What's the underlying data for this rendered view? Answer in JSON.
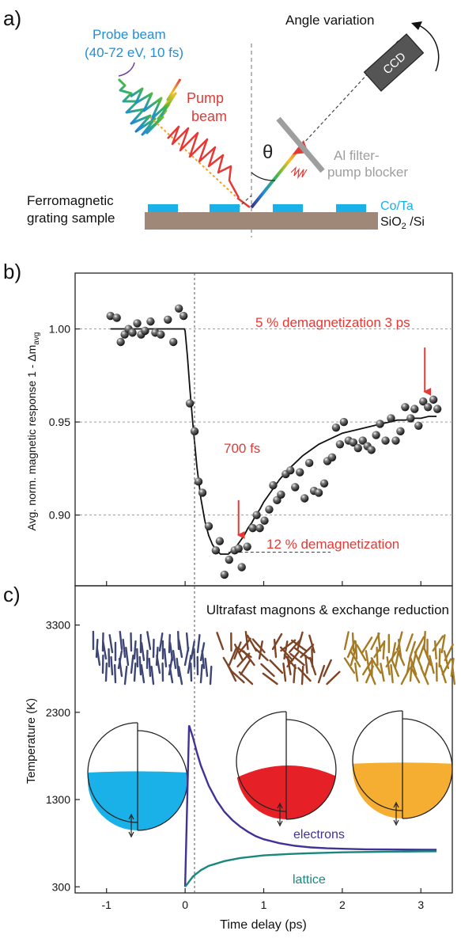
{
  "panel_a": {
    "label": "a)",
    "probe_line1": "Probe beam",
    "probe_line2": "(40-72 eV, 10 fs)",
    "pump_line1": "Pump",
    "pump_line2": "beam",
    "angle_variation": "Angle variation",
    "ccd": "CCD",
    "theta": "θ",
    "filter_line1": "Al filter-",
    "filter_line2": "pump blocker",
    "sample_line1": "Ferromagnetic",
    "sample_line2": "grating sample",
    "coTa": "Co/Ta",
    "substrate_main": "SiO",
    "substrate_sub": "2",
    "substrate_rest": " /Si",
    "colors": {
      "probe_text": "#1f8fd6",
      "pump": "#e53935",
      "grating": "#1ab0e8",
      "substrate": "#a08878",
      "filter": "#9e9e9e",
      "ccd": "#555555"
    }
  },
  "chart_data": [
    {
      "panel": "b)",
      "type": "scatter",
      "ylabel": "Avg. norm. magnetic response 1 - Δm",
      "ylabel_sub": "avg",
      "xlim": [
        -1.4,
        3.4
      ],
      "ylim": [
        0.862,
        1.03
      ],
      "yticks": [
        "0.90",
        "0.95",
        "1.00"
      ],
      "ytick_values": [
        0.9,
        0.95,
        1.0
      ],
      "grid": true,
      "points": [
        {
          "x": -0.95,
          "y": 1.007
        },
        {
          "x": -0.87,
          "y": 1.006
        },
        {
          "x": -0.82,
          "y": 0.993
        },
        {
          "x": -0.77,
          "y": 0.997
        },
        {
          "x": -0.72,
          "y": 1.0
        },
        {
          "x": -0.67,
          "y": 0.998
        },
        {
          "x": -0.61,
          "y": 1.003
        },
        {
          "x": -0.56,
          "y": 0.997
        },
        {
          "x": -0.51,
          "y": 0.999
        },
        {
          "x": -0.44,
          "y": 1.004
        },
        {
          "x": -0.38,
          "y": 0.998
        },
        {
          "x": -0.31,
          "y": 0.997
        },
        {
          "x": -0.22,
          "y": 1.005
        },
        {
          "x": -0.15,
          "y": 0.993
        },
        {
          "x": -0.08,
          "y": 1.011
        },
        {
          "x": -0.02,
          "y": 1.007
        },
        {
          "x": 0.06,
          "y": 0.96
        },
        {
          "x": 0.12,
          "y": 0.945
        },
        {
          "x": 0.17,
          "y": 0.918
        },
        {
          "x": 0.22,
          "y": 0.912
        },
        {
          "x": 0.3,
          "y": 0.894
        },
        {
          "x": 0.39,
          "y": 0.881
        },
        {
          "x": 0.44,
          "y": 0.886
        },
        {
          "x": 0.5,
          "y": 0.868
        },
        {
          "x": 0.56,
          "y": 0.876
        },
        {
          "x": 0.63,
          "y": 0.881
        },
        {
          "x": 0.68,
          "y": 0.882
        },
        {
          "x": 0.72,
          "y": 0.872
        },
        {
          "x": 0.79,
          "y": 0.883
        },
        {
          "x": 0.86,
          "y": 0.893
        },
        {
          "x": 0.91,
          "y": 0.9
        },
        {
          "x": 0.95,
          "y": 0.893
        },
        {
          "x": 1.01,
          "y": 0.897
        },
        {
          "x": 1.07,
          "y": 0.903
        },
        {
          "x": 1.12,
          "y": 0.916
        },
        {
          "x": 1.17,
          "y": 0.908
        },
        {
          "x": 1.22,
          "y": 0.911
        },
        {
          "x": 1.28,
          "y": 0.922
        },
        {
          "x": 1.34,
          "y": 0.924
        },
        {
          "x": 1.4,
          "y": 0.915
        },
        {
          "x": 1.46,
          "y": 0.923
        },
        {
          "x": 1.52,
          "y": 0.909
        },
        {
          "x": 1.58,
          "y": 0.928
        },
        {
          "x": 1.64,
          "y": 0.913
        },
        {
          "x": 1.7,
          "y": 0.912
        },
        {
          "x": 1.77,
          "y": 0.917
        },
        {
          "x": 1.81,
          "y": 0.929
        },
        {
          "x": 1.87,
          "y": 0.931
        },
        {
          "x": 1.92,
          "y": 0.947
        },
        {
          "x": 1.97,
          "y": 0.938
        },
        {
          "x": 2.02,
          "y": 0.95
        },
        {
          "x": 2.08,
          "y": 0.94
        },
        {
          "x": 2.14,
          "y": 0.939
        },
        {
          "x": 2.2,
          "y": 0.936
        },
        {
          "x": 2.26,
          "y": 0.94
        },
        {
          "x": 2.32,
          "y": 0.937
        },
        {
          "x": 2.37,
          "y": 0.935
        },
        {
          "x": 2.43,
          "y": 0.943
        },
        {
          "x": 2.48,
          "y": 0.949
        },
        {
          "x": 2.55,
          "y": 0.94
        },
        {
          "x": 2.62,
          "y": 0.952
        },
        {
          "x": 2.68,
          "y": 0.94
        },
        {
          "x": 2.74,
          "y": 0.945
        },
        {
          "x": 2.8,
          "y": 0.958
        },
        {
          "x": 2.87,
          "y": 0.952
        },
        {
          "x": 2.92,
          "y": 0.957
        },
        {
          "x": 2.97,
          "y": 0.948
        },
        {
          "x": 3.03,
          "y": 0.961
        },
        {
          "x": 3.09,
          "y": 0.958
        },
        {
          "x": 3.16,
          "y": 0.962
        },
        {
          "x": 3.21,
          "y": 0.957
        }
      ],
      "fit_line": {
        "x": [
          -0.95,
          -0.01,
          0.0,
          0.03,
          0.06,
          0.1,
          0.15,
          0.2,
          0.25,
          0.3,
          0.35,
          0.4,
          0.45,
          0.5,
          0.55,
          0.6,
          0.65,
          0.7,
          0.75,
          0.8,
          0.85,
          0.9,
          0.95,
          1.0,
          1.05,
          1.1,
          1.15,
          1.2,
          1.3,
          1.4,
          1.5,
          1.6,
          1.7,
          1.8,
          1.9,
          2.0,
          2.1,
          2.2,
          2.3,
          2.4,
          2.5,
          2.6,
          2.7,
          2.8,
          2.9,
          3.0,
          3.1,
          3.2
        ],
        "y": [
          1.0,
          1.0,
          0.999,
          0.985,
          0.968,
          0.948,
          0.926,
          0.909,
          0.897,
          0.889,
          0.884,
          0.881,
          0.879,
          0.879,
          0.879,
          0.881,
          0.883,
          0.886,
          0.889,
          0.893,
          0.896,
          0.9,
          0.903,
          0.907,
          0.91,
          0.913,
          0.916,
          0.919,
          0.924,
          0.928,
          0.932,
          0.935,
          0.938,
          0.94,
          0.942,
          0.944,
          0.945,
          0.946,
          0.947,
          0.948,
          0.949,
          0.95,
          0.951,
          0.951,
          0.952,
          0.952,
          0.953,
          0.953
        ]
      },
      "annotations": [
        {
          "text": "5 % demagnetization  3 ps",
          "arrow_x": 3.05,
          "arrow_from": 0.99,
          "arrow_to": 0.962
        },
        {
          "text": "700 fs",
          "arrow_x": 0.68,
          "arrow_from": 0.908,
          "arrow_to": 0.885
        },
        {
          "text": "12 % demagnetization",
          "level": 0.879
        }
      ],
      "reference_level": 0.88,
      "colors": {
        "annotation": "#e53935",
        "points": "#222222",
        "grid": "#9e9e9e"
      }
    },
    {
      "panel": "c)",
      "type": "line",
      "title": "Ultrafast magnons & exchange reduction",
      "xlabel": "Time delay (ps)",
      "ylabel": "Temperature (K)",
      "xlim": [
        -1.4,
        3.4
      ],
      "ylim": [
        230,
        3750
      ],
      "xticks": [
        "-1",
        "0",
        "1",
        "2",
        "3"
      ],
      "xtick_values": [
        -1,
        0,
        1,
        2,
        3
      ],
      "yticks": [
        "300",
        "1300",
        "2300",
        "3300"
      ],
      "ytick_values": [
        300,
        1300,
        2300,
        3300
      ],
      "series": [
        {
          "name": "electrons",
          "color": "#3f3395",
          "x": [
            0.0,
            0.05,
            0.1,
            0.15,
            0.2,
            0.3,
            0.4,
            0.5,
            0.6,
            0.7,
            0.8,
            0.9,
            1.0,
            1.2,
            1.4,
            1.6,
            1.8,
            2.0,
            2.3,
            2.6,
            2.9,
            3.2
          ],
          "y": [
            300,
            2150,
            2010,
            1840,
            1690,
            1460,
            1290,
            1160,
            1065,
            990,
            930,
            880,
            845,
            800,
            770,
            752,
            742,
            736,
            730,
            728,
            726,
            725
          ]
        },
        {
          "name": "lattice",
          "color": "#19877d",
          "x": [
            0.0,
            0.1,
            0.2,
            0.3,
            0.5,
            0.7,
            1.0,
            1.3,
            1.6,
            2.0,
            2.5,
            3.0,
            3.2
          ],
          "y": [
            300,
            420,
            490,
            540,
            595,
            630,
            660,
            675,
            685,
            695,
            702,
            706,
            707
          ]
        }
      ],
      "spin_colors": [
        "#3e4676",
        "#7d4426",
        "#a57b24"
      ],
      "sphere_fills": [
        "#1ab0e8",
        "#e52127",
        "#f5ad32"
      ]
    }
  ]
}
